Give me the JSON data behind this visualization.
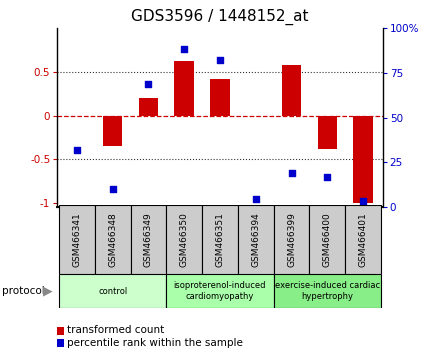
{
  "title": "GDS3596 / 1448152_at",
  "samples": [
    "GSM466341",
    "GSM466348",
    "GSM466349",
    "GSM466350",
    "GSM466351",
    "GSM466394",
    "GSM466399",
    "GSM466400",
    "GSM466401"
  ],
  "bar_values": [
    0.0,
    -0.35,
    0.2,
    0.62,
    0.42,
    0.0,
    0.58,
    -0.38,
    -1.0
  ],
  "dot_values_pct": [
    30,
    8,
    68,
    88,
    82,
    2,
    17,
    15,
    1
  ],
  "bar_color": "#cc0000",
  "dot_color": "#0000cc",
  "ylim_left": [
    -1.05,
    1.0
  ],
  "ylim_right": [
    0,
    100
  ],
  "yticks_left": [
    -1,
    -0.5,
    0,
    0.5
  ],
  "ytick_labels_left": [
    "-1",
    "-0.5",
    "0",
    "0.5"
  ],
  "yticks_right": [
    0,
    25,
    50,
    75,
    100
  ],
  "ytick_labels_right": [
    "0",
    "25",
    "50",
    "75",
    "100%"
  ],
  "groups": [
    {
      "label": "control",
      "start": 0,
      "end": 3,
      "color": "#ccffcc"
    },
    {
      "label": "isoproterenol-induced\ncardiomyopathy",
      "start": 3,
      "end": 6,
      "color": "#aaffaa"
    },
    {
      "label": "exercise-induced cardiac\nhypertrophy",
      "start": 6,
      "end": 9,
      "color": "#88ee88"
    }
  ],
  "protocol_label": "protocol",
  "legend_bar_label": "transformed count",
  "legend_dot_label": "percentile rank within the sample",
  "bg_color": "#ffffff",
  "sample_box_color": "#cccccc",
  "hline_color": "#cc0000",
  "dotted_line_color": "#333333",
  "title_fontsize": 11,
  "tick_fontsize": 7.5,
  "label_fontsize": 8
}
